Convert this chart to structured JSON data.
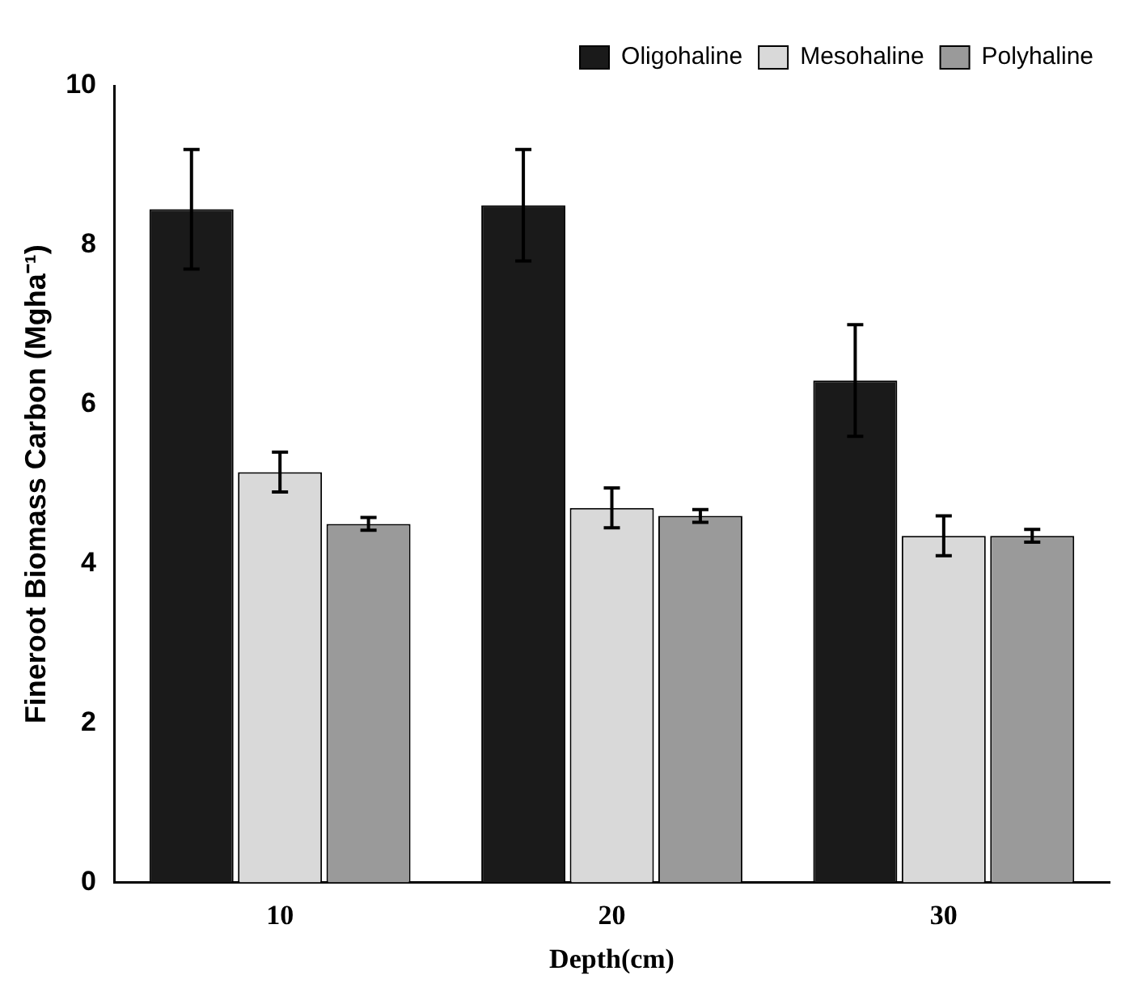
{
  "chart_data": {
    "type": "bar",
    "xlabel": "Depth(cm)",
    "ylabel": "Fineroot Biomass Carbon (Mgha⁻¹)",
    "categories": [
      "10",
      "20",
      "30"
    ],
    "series": [
      {
        "name": "Oligohaline",
        "color": "#1a1a1a",
        "values": [
          8.45,
          8.5,
          6.3
        ],
        "errors": [
          0.75,
          0.7,
          0.7
        ]
      },
      {
        "name": "Mesohaline",
        "color": "#d9d9d9",
        "values": [
          5.15,
          4.7,
          4.35
        ],
        "errors": [
          0.25,
          0.25,
          0.25
        ]
      },
      {
        "name": "Polyhaline",
        "color": "#9a9a9a",
        "values": [
          4.5,
          4.6,
          4.35
        ],
        "errors": [
          0.08,
          0.08,
          0.08
        ]
      }
    ],
    "ylim": [
      0,
      10
    ],
    "yticks": [
      0,
      2,
      4,
      6,
      8,
      10
    ],
    "grid": false,
    "legend": "top right"
  }
}
